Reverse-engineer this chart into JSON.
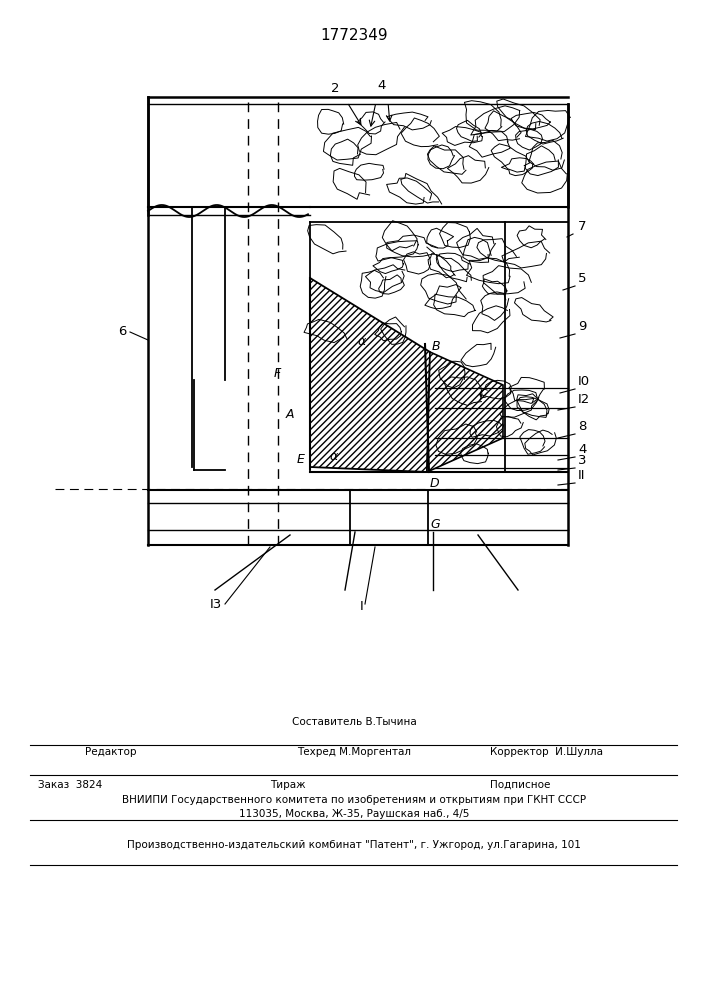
{
  "title": "1772349",
  "bg_color": "#ffffff",
  "line_color": "#000000",
  "footer_sestavitel": "Составитель В.Тычина",
  "footer_redaktor": "Редактор",
  "footer_tehred": "Техред М.Моргентал",
  "footer_korrektor": "Корректор  И.Шулла",
  "footer_zakaz": "Заказ  3824",
  "footer_tirazh": "Тираж",
  "footer_podpisnoe": "Подписное",
  "footer_vniipи": "ВНИИПИ Государственного комитета по изобретениям и открытиям при ГКНТ СССР",
  "footer_addr": "113035, Москва, Ж-35, Раушская наб., 4/5",
  "footer_kombinat": "Производственно-издательский комбинат \"Патент\", г. Ужгород, ул.Гагарина, 101"
}
